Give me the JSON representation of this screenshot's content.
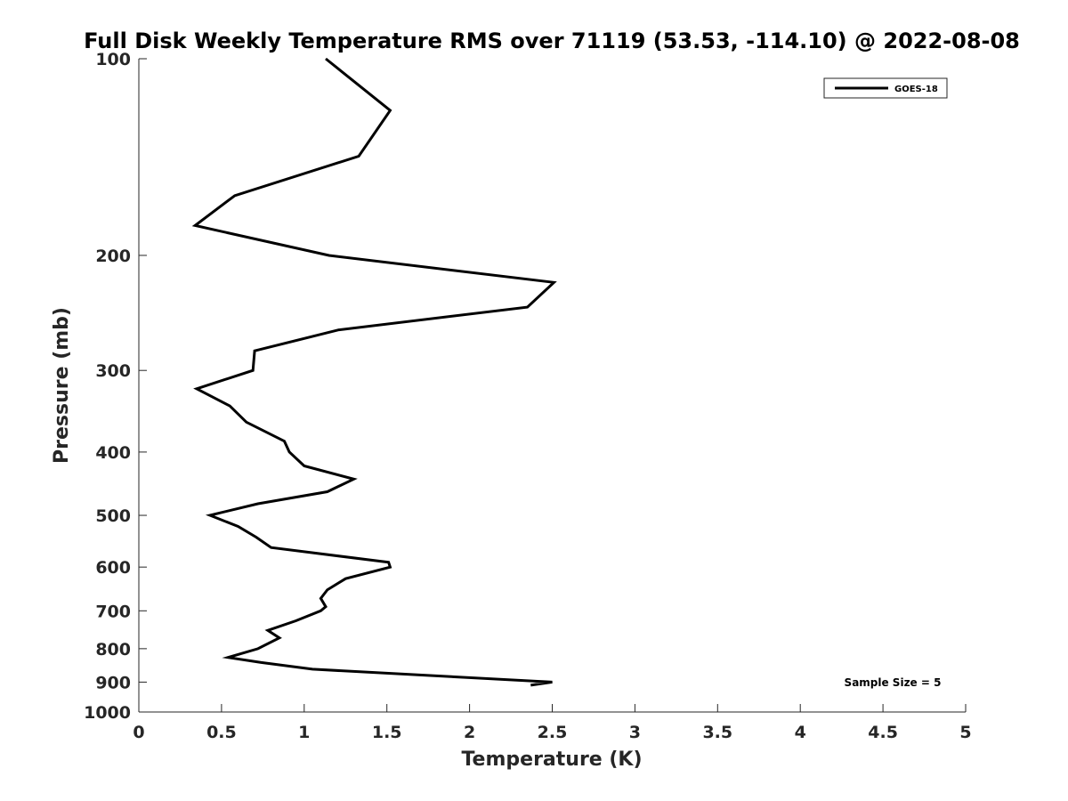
{
  "chart_data": {
    "type": "line",
    "title": "Full Disk Weekly Temperature RMS over 71119 (53.53, -114.10) @ 2022-08-08",
    "xlabel": "Temperature (K)",
    "ylabel": "Pressure (mb)",
    "xlim": [
      0,
      5
    ],
    "ylim": [
      100,
      1000
    ],
    "y_scale": "log",
    "y_reversed": true,
    "x_ticks": [
      0,
      0.5,
      1,
      1.5,
      2,
      2.5,
      3,
      3.5,
      4,
      4.5,
      5
    ],
    "x_tick_labels": [
      "0",
      "0.5",
      "1",
      "1.5",
      "2",
      "2.5",
      "3",
      "3.5",
      "4",
      "4.5",
      "5"
    ],
    "y_ticks": [
      100,
      200,
      300,
      400,
      500,
      600,
      700,
      800,
      900,
      1000
    ],
    "y_tick_labels": [
      "100",
      "200",
      "300",
      "400",
      "500",
      "600",
      "700",
      "800",
      "900",
      "1000"
    ],
    "grid": false,
    "legend_position": "top-right",
    "annotation": "Sample Size = 5",
    "series": [
      {
        "name": "GOES-18",
        "color": "#000000",
        "points": [
          {
            "x": 1.13,
            "y": 100
          },
          {
            "x": 1.52,
            "y": 120
          },
          {
            "x": 1.33,
            "y": 141
          },
          {
            "x": 0.58,
            "y": 162
          },
          {
            "x": 0.34,
            "y": 180
          },
          {
            "x": 1.15,
            "y": 200
          },
          {
            "x": 2.51,
            "y": 220
          },
          {
            "x": 2.35,
            "y": 240
          },
          {
            "x": 1.21,
            "y": 260
          },
          {
            "x": 0.7,
            "y": 280
          },
          {
            "x": 0.69,
            "y": 300
          },
          {
            "x": 0.35,
            "y": 320
          },
          {
            "x": 0.55,
            "y": 340
          },
          {
            "x": 0.65,
            "y": 360
          },
          {
            "x": 0.88,
            "y": 385
          },
          {
            "x": 0.91,
            "y": 400
          },
          {
            "x": 1.0,
            "y": 420
          },
          {
            "x": 1.3,
            "y": 440
          },
          {
            "x": 1.14,
            "y": 460
          },
          {
            "x": 0.72,
            "y": 480
          },
          {
            "x": 0.43,
            "y": 500
          },
          {
            "x": 0.6,
            "y": 520
          },
          {
            "x": 0.71,
            "y": 540
          },
          {
            "x": 0.8,
            "y": 560
          },
          {
            "x": 1.51,
            "y": 590
          },
          {
            "x": 1.52,
            "y": 600
          },
          {
            "x": 1.25,
            "y": 625
          },
          {
            "x": 1.14,
            "y": 650
          },
          {
            "x": 1.1,
            "y": 670
          },
          {
            "x": 1.13,
            "y": 690
          },
          {
            "x": 1.1,
            "y": 700
          },
          {
            "x": 0.95,
            "y": 725
          },
          {
            "x": 0.78,
            "y": 750
          },
          {
            "x": 0.85,
            "y": 770
          },
          {
            "x": 0.72,
            "y": 800
          },
          {
            "x": 0.54,
            "y": 825
          },
          {
            "x": 0.74,
            "y": 840
          },
          {
            "x": 1.05,
            "y": 860
          },
          {
            "x": 2.5,
            "y": 900
          },
          {
            "x": 2.37,
            "y": 910
          }
        ]
      }
    ]
  }
}
